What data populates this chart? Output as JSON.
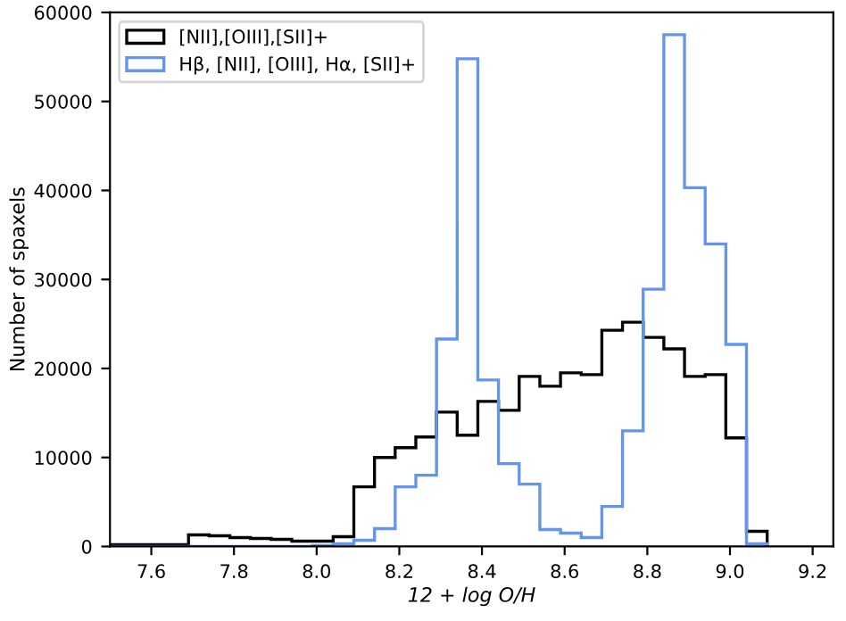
{
  "chart_data": {
    "type": "histogram",
    "xlabel": "12 + log O/H",
    "ylabel": "Number of spaxels",
    "bins": [
      7.5,
      7.69,
      7.74,
      7.79,
      7.84,
      7.89,
      7.94,
      7.99,
      8.04,
      8.09,
      8.14,
      8.19,
      8.24,
      8.29,
      8.34,
      8.39,
      8.44,
      8.49,
      8.54,
      8.59,
      8.64,
      8.69,
      8.74,
      8.79,
      8.84,
      8.89,
      8.94,
      8.99,
      9.04,
      9.09
    ],
    "series": [
      {
        "name": "[NII],[OIII],[SII]+",
        "color": "#000000",
        "values": [
          200,
          1300,
          1200,
          1000,
          900,
          800,
          600,
          600,
          1100,
          6700,
          10000,
          11100,
          12300,
          15100,
          12500,
          16300,
          15300,
          19100,
          18000,
          19500,
          19300,
          24300,
          25200,
          23500,
          22200,
          19100,
          19300,
          12200,
          1700
        ]
      },
      {
        "name": "Hβ, [NII], [OIII], Hα, [SII]+",
        "color": "#6495ed",
        "values": [
          0,
          0,
          0,
          0,
          0,
          0,
          0,
          100,
          300,
          700,
          2000,
          6700,
          8000,
          23300,
          54800,
          18700,
          9300,
          7000,
          1900,
          1500,
          1000,
          4500,
          13000,
          28900,
          57500,
          40300,
          34000,
          22700,
          300
        ]
      }
    ],
    "xlim": [
      7.5,
      9.25
    ],
    "xticks": [
      7.6,
      7.8,
      {
        "value": 8.0,
        "label": "8.0"
      },
      8.2,
      8.4,
      8.6,
      8.8,
      {
        "value": 9.0,
        "label": "9.0"
      },
      9.2
    ],
    "ylim": [
      0,
      60000
    ],
    "yticks": [
      0,
      10000,
      20000,
      30000,
      40000,
      50000,
      60000
    ],
    "legend": "top left"
  }
}
